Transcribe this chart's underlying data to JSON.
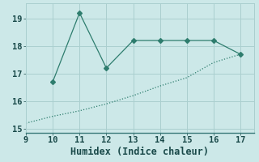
{
  "xlabel": "Humidex (Indice chaleur)",
  "line1_x": [
    10,
    11,
    12,
    13,
    14,
    15,
    16,
    17
  ],
  "line1_y": [
    16.7,
    19.2,
    17.2,
    18.2,
    18.2,
    18.2,
    18.2,
    17.7
  ],
  "line2_x": [
    9,
    10,
    11,
    12,
    13,
    14,
    15,
    16,
    17
  ],
  "line2_y": [
    15.2,
    15.45,
    15.65,
    15.9,
    16.2,
    16.55,
    16.85,
    17.4,
    17.7
  ],
  "line_color": "#2e7d6e",
  "bg_color": "#cce8e8",
  "grid_color": "#aacfcf",
  "marker": "D",
  "marker_size": 3,
  "xlim": [
    9,
    17.5
  ],
  "ylim": [
    14.85,
    19.55
  ],
  "xticks": [
    9,
    10,
    11,
    12,
    13,
    14,
    15,
    16,
    17
  ],
  "yticks": [
    15,
    16,
    17,
    18,
    19
  ],
  "tick_fontsize": 7.5,
  "xlabel_fontsize": 8.5
}
